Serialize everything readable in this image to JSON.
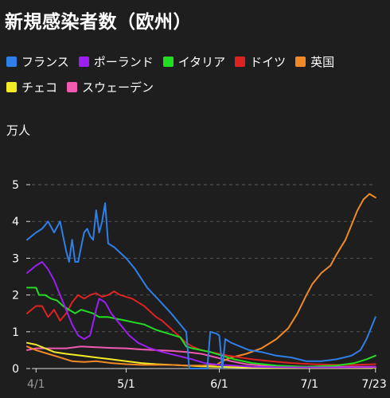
{
  "title": "新規感染者数（欧州）",
  "unit_label": "万人",
  "colors": {
    "background": "#1e1e1e",
    "grid": "#555555",
    "axis": "#dddddd"
  },
  "chart_data": {
    "type": "line",
    "title": "新規感染者数（欧州）",
    "ylabel": "万人",
    "xlabel": "",
    "ylim": [
      0,
      5
    ],
    "yticks": [
      0,
      1,
      2,
      3,
      4,
      5
    ],
    "grid": "horizontal dashed",
    "legend": "top",
    "x_range_days": [
      -3,
      112
    ],
    "xticks": [
      {
        "label": "4/1",
        "day": 0,
        "dim": true
      },
      {
        "label": "5/1",
        "day": 30,
        "dim": false
      },
      {
        "label": "6/1",
        "day": 61,
        "dim": false
      },
      {
        "label": "7/1",
        "day": 91,
        "dim": false
      },
      {
        "label": "7/23",
        "day": 113,
        "dim": false
      }
    ],
    "series": [
      {
        "name": "フランス",
        "color": "#2f7fe8",
        "points": [
          [
            -3,
            3.5
          ],
          [
            0,
            3.7
          ],
          [
            2,
            3.8
          ],
          [
            4,
            4.0
          ],
          [
            6,
            3.7
          ],
          [
            8,
            4.0
          ],
          [
            10,
            3.2
          ],
          [
            11,
            2.9
          ],
          [
            12,
            3.5
          ],
          [
            13,
            2.9
          ],
          [
            14,
            2.9
          ],
          [
            15,
            3.3
          ],
          [
            16,
            3.7
          ],
          [
            17,
            3.8
          ],
          [
            18,
            3.6
          ],
          [
            19,
            3.5
          ],
          [
            20,
            4.3
          ],
          [
            21,
            3.7
          ],
          [
            22,
            4.0
          ],
          [
            23,
            4.5
          ],
          [
            24,
            3.4
          ],
          [
            26,
            3.3
          ],
          [
            30,
            3.0
          ],
          [
            33,
            2.7
          ],
          [
            37,
            2.2
          ],
          [
            41,
            1.85
          ],
          [
            45,
            1.5
          ],
          [
            48,
            1.2
          ],
          [
            50,
            1.0
          ],
          [
            51,
            0.0
          ],
          [
            57,
            0.0
          ],
          [
            58,
            1.0
          ],
          [
            60,
            0.95
          ],
          [
            61,
            0.9
          ],
          [
            62,
            0.0
          ],
          [
            63,
            0.8
          ],
          [
            65,
            0.7
          ],
          [
            68,
            0.6
          ],
          [
            71,
            0.5
          ],
          [
            75,
            0.45
          ],
          [
            80,
            0.35
          ],
          [
            85,
            0.3
          ],
          [
            90,
            0.2
          ],
          [
            95,
            0.2
          ],
          [
            100,
            0.25
          ],
          [
            105,
            0.35
          ],
          [
            108,
            0.5
          ],
          [
            110,
            0.8
          ],
          [
            112,
            1.2
          ],
          [
            113,
            1.4
          ]
        ]
      },
      {
        "name": "ポーランド",
        "color": "#9a1ff0",
        "points": [
          [
            -3,
            2.6
          ],
          [
            0,
            2.8
          ],
          [
            2,
            2.9
          ],
          [
            4,
            2.7
          ],
          [
            6,
            2.4
          ],
          [
            8,
            2.0
          ],
          [
            10,
            1.6
          ],
          [
            12,
            1.2
          ],
          [
            14,
            0.9
          ],
          [
            16,
            0.8
          ],
          [
            18,
            0.9
          ],
          [
            20,
            1.6
          ],
          [
            21,
            1.9
          ],
          [
            23,
            1.8
          ],
          [
            25,
            1.5
          ],
          [
            28,
            1.2
          ],
          [
            31,
            0.9
          ],
          [
            34,
            0.7
          ],
          [
            38,
            0.55
          ],
          [
            42,
            0.45
          ],
          [
            47,
            0.35
          ],
          [
            52,
            0.25
          ],
          [
            56,
            0.15
          ],
          [
            61,
            0.1
          ],
          [
            66,
            0.08
          ],
          [
            72,
            0.05
          ],
          [
            80,
            0.04
          ],
          [
            90,
            0.03
          ],
          [
            100,
            0.03
          ],
          [
            113,
            0.04
          ]
        ]
      },
      {
        "name": "イタリア",
        "color": "#22dd22",
        "points": [
          [
            -3,
            2.2
          ],
          [
            0,
            2.2
          ],
          [
            1,
            2.0
          ],
          [
            3,
            2.0
          ],
          [
            5,
            1.9
          ],
          [
            7,
            1.85
          ],
          [
            9,
            1.7
          ],
          [
            11,
            1.6
          ],
          [
            13,
            1.5
          ],
          [
            15,
            1.6
          ],
          [
            17,
            1.55
          ],
          [
            19,
            1.5
          ],
          [
            21,
            1.4
          ],
          [
            24,
            1.4
          ],
          [
            27,
            1.35
          ],
          [
            30,
            1.3
          ],
          [
            33,
            1.25
          ],
          [
            36,
            1.2
          ],
          [
            40,
            1.05
          ],
          [
            44,
            0.95
          ],
          [
            48,
            0.85
          ],
          [
            50,
            0.6
          ],
          [
            52,
            0.55
          ],
          [
            55,
            0.5
          ],
          [
            58,
            0.45
          ],
          [
            62,
            0.35
          ],
          [
            66,
            0.25
          ],
          [
            72,
            0.15
          ],
          [
            80,
            0.08
          ],
          [
            90,
            0.05
          ],
          [
            100,
            0.08
          ],
          [
            106,
            0.15
          ],
          [
            110,
            0.25
          ],
          [
            113,
            0.35
          ]
        ]
      },
      {
        "name": "ドイツ",
        "color": "#dd2222",
        "points": [
          [
            -3,
            1.5
          ],
          [
            0,
            1.7
          ],
          [
            2,
            1.7
          ],
          [
            4,
            1.4
          ],
          [
            6,
            1.6
          ],
          [
            8,
            1.3
          ],
          [
            10,
            1.5
          ],
          [
            12,
            1.8
          ],
          [
            14,
            2.0
          ],
          [
            16,
            1.9
          ],
          [
            18,
            2.0
          ],
          [
            20,
            2.05
          ],
          [
            22,
            1.95
          ],
          [
            24,
            2.0
          ],
          [
            26,
            2.1
          ],
          [
            28,
            2.0
          ],
          [
            30,
            1.95
          ],
          [
            32,
            1.9
          ],
          [
            34,
            1.8
          ],
          [
            36,
            1.7
          ],
          [
            38,
            1.55
          ],
          [
            40,
            1.4
          ],
          [
            42,
            1.3
          ],
          [
            44,
            1.15
          ],
          [
            46,
            1.0
          ],
          [
            48,
            0.85
          ],
          [
            50,
            0.7
          ],
          [
            52,
            0.6
          ],
          [
            55,
            0.5
          ],
          [
            58,
            0.45
          ],
          [
            61,
            0.4
          ],
          [
            64,
            0.35
          ],
          [
            68,
            0.3
          ],
          [
            72,
            0.25
          ],
          [
            78,
            0.2
          ],
          [
            85,
            0.15
          ],
          [
            92,
            0.12
          ],
          [
            100,
            0.1
          ],
          [
            106,
            0.1
          ],
          [
            113,
            0.12
          ]
        ]
      },
      {
        "name": "英国",
        "color": "#f08a28",
        "points": [
          [
            -3,
            0.6
          ],
          [
            0,
            0.5
          ],
          [
            4,
            0.4
          ],
          [
            8,
            0.3
          ],
          [
            12,
            0.2
          ],
          [
            16,
            0.18
          ],
          [
            20,
            0.2
          ],
          [
            25,
            0.15
          ],
          [
            30,
            0.12
          ],
          [
            35,
            0.1
          ],
          [
            40,
            0.1
          ],
          [
            45,
            0.1
          ],
          [
            50,
            0.08
          ],
          [
            55,
            0.08
          ],
          [
            60,
            0.1
          ],
          [
            62,
            0.2
          ],
          [
            65,
            0.3
          ],
          [
            70,
            0.4
          ],
          [
            75,
            0.55
          ],
          [
            80,
            0.8
          ],
          [
            84,
            1.1
          ],
          [
            87,
            1.5
          ],
          [
            90,
            2.0
          ],
          [
            92,
            2.3
          ],
          [
            95,
            2.6
          ],
          [
            98,
            2.8
          ],
          [
            100,
            3.1
          ],
          [
            103,
            3.5
          ],
          [
            105,
            3.9
          ],
          [
            107,
            4.3
          ],
          [
            109,
            4.6
          ],
          [
            111,
            4.75
          ],
          [
            112,
            4.7
          ],
          [
            113,
            4.65
          ]
        ]
      },
      {
        "name": "チェコ",
        "color": "#f2ec28",
        "points": [
          [
            -3,
            0.7
          ],
          [
            0,
            0.65
          ],
          [
            3,
            0.55
          ],
          [
            6,
            0.45
          ],
          [
            10,
            0.4
          ],
          [
            15,
            0.35
          ],
          [
            20,
            0.3
          ],
          [
            25,
            0.25
          ],
          [
            30,
            0.2
          ],
          [
            35,
            0.15
          ],
          [
            40,
            0.12
          ],
          [
            45,
            0.1
          ],
          [
            50,
            0.08
          ],
          [
            55,
            0.06
          ],
          [
            60,
            0.05
          ],
          [
            70,
            0.03
          ],
          [
            80,
            0.02
          ],
          [
            90,
            0.02
          ],
          [
            100,
            0.02
          ],
          [
            113,
            0.02
          ]
        ]
      },
      {
        "name": "スウェーデン",
        "color": "#f05ab0",
        "points": [
          [
            -3,
            0.5
          ],
          [
            0,
            0.55
          ],
          [
            5,
            0.55
          ],
          [
            10,
            0.55
          ],
          [
            15,
            0.6
          ],
          [
            20,
            0.58
          ],
          [
            25,
            0.56
          ],
          [
            30,
            0.55
          ],
          [
            35,
            0.52
          ],
          [
            40,
            0.5
          ],
          [
            45,
            0.48
          ],
          [
            50,
            0.45
          ],
          [
            55,
            0.4
          ],
          [
            60,
            0.3
          ],
          [
            65,
            0.2
          ],
          [
            70,
            0.12
          ],
          [
            75,
            0.08
          ],
          [
            80,
            0.06
          ],
          [
            90,
            0.05
          ],
          [
            100,
            0.05
          ],
          [
            113,
            0.05
          ]
        ]
      }
    ]
  }
}
